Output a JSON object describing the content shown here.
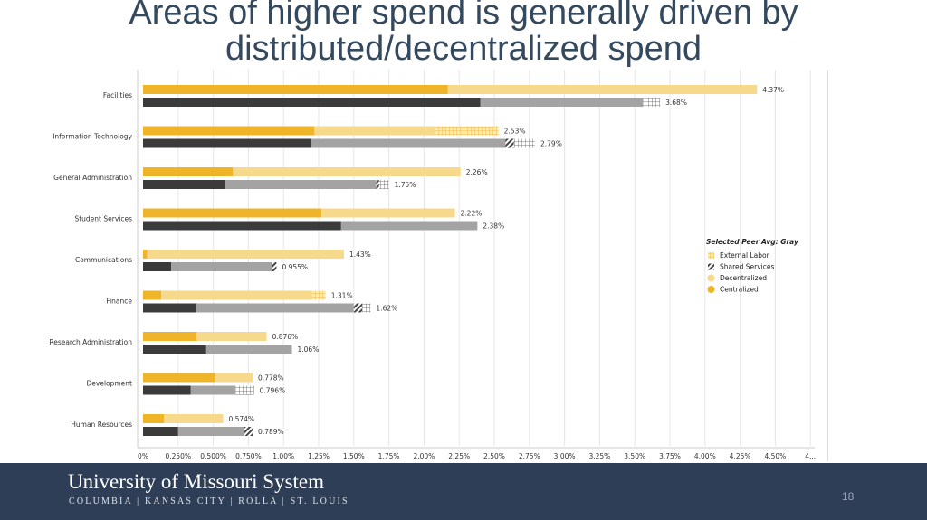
{
  "title": "Areas of higher spend is generally driven by distributed/decentralized spend",
  "footer": {
    "university": "University of Missouri System",
    "campuses": "COLUMBIA | KANSAS CITY | ROLLA | ST. LOUIS",
    "page_number": "18"
  },
  "colors": {
    "centralized": "#f0b429",
    "decentralized": "#f7d98c",
    "peer_dark": "#3b3b3b",
    "peer_gray": "#a3a3a3",
    "title": "#34495e",
    "footer_bg": "#2e3e57"
  },
  "legend": {
    "title": "Selected Peer Avg: Gray",
    "items": [
      {
        "label": "External Labor",
        "icon": "grid-pattern-icon"
      },
      {
        "label": "Shared Services",
        "icon": "stripe-pattern-icon"
      },
      {
        "label": "Decentralized",
        "icon": "light-yellow-dot-icon"
      },
      {
        "label": "Centralized",
        "icon": "yellow-dot-icon"
      }
    ]
  },
  "chart_data": {
    "type": "bar",
    "orientation": "horizontal",
    "stacked": true,
    "xlim": [
      0,
      4.75
    ],
    "x_ticks": [
      "0%",
      "0.250%",
      "0.500%",
      "0.750%",
      "1.00%",
      "1.25%",
      "1.50%",
      "1.75%",
      "2.00%",
      "2.25%",
      "2.50%",
      "2.75%",
      "3.00%",
      "3.25%",
      "3.50%",
      "3.75%",
      "4.00%",
      "4.25%",
      "4.50%",
      "4..."
    ],
    "grid": true,
    "legend_position": "right",
    "categories": [
      "Facilities",
      "Information Technology",
      "General Administration",
      "Student Services",
      "Communications",
      "Finance",
      "Research Administration",
      "Development",
      "Human Resources"
    ],
    "series": [
      {
        "name": "Centralized",
        "values": [
          2.17,
          1.22,
          0.64,
          1.27,
          0.03,
          0.13,
          0.38,
          0.51,
          0.15
        ]
      },
      {
        "name": "Decentralized",
        "values": [
          2.2,
          0.86,
          1.62,
          0.95,
          1.4,
          1.07,
          0.5,
          0.27,
          0.42
        ]
      },
      {
        "name": "External Labor",
        "values": [
          0,
          0.45,
          0,
          0,
          0,
          0.1,
          0,
          0,
          0
        ]
      }
    ],
    "peer_series": [
      {
        "name": "Centralized",
        "values": [
          2.4,
          1.2,
          0.58,
          1.41,
          0.2,
          0.38,
          0.45,
          0.34,
          0.25
        ]
      },
      {
        "name": "Decentralized",
        "values": [
          1.16,
          1.38,
          1.08,
          0.97,
          0.72,
          1.12,
          0.61,
          0.32,
          0.47
        ]
      },
      {
        "name": "Shared Services",
        "values": [
          0,
          0.06,
          0.02,
          0,
          0.03,
          0.06,
          0,
          0,
          0.06
        ]
      },
      {
        "name": "External Labor",
        "values": [
          0.12,
          0.15,
          0.07,
          0,
          0,
          0.06,
          0,
          0.13,
          0
        ]
      }
    ],
    "selected_totals": [
      "4.37%",
      "2.53%",
      "2.26%",
      "2.22%",
      "1.43%",
      "1.31%",
      "0.876%",
      "0.778%",
      "0.574%"
    ],
    "peer_totals": [
      "3.68%",
      "2.79%",
      "1.75%",
      "2.38%",
      "0.955%",
      "1.62%",
      "1.06%",
      "0.796%",
      "0.789%"
    ]
  }
}
